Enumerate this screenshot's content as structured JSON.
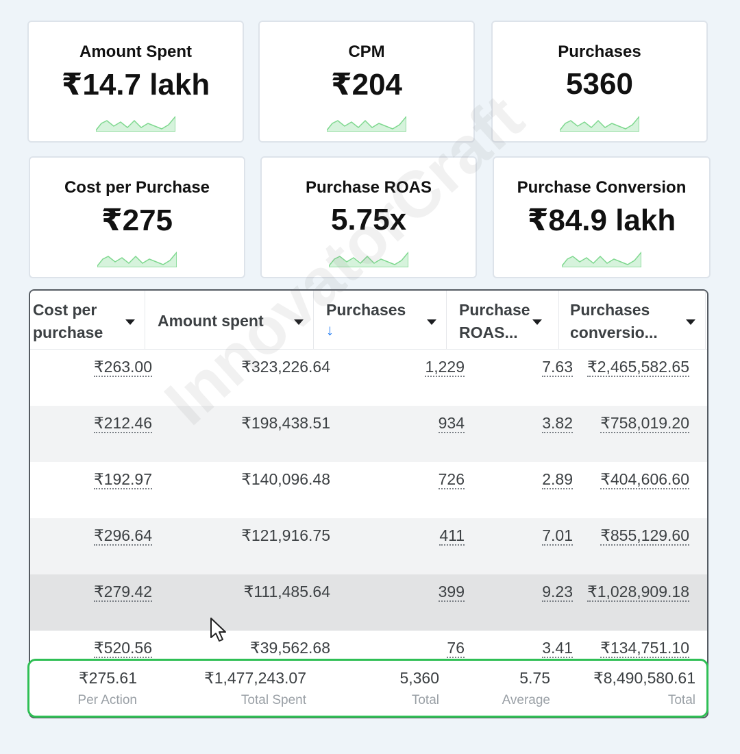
{
  "cards": [
    {
      "label": "Amount Spent",
      "value": "₹14.7 lakh"
    },
    {
      "label": "CPM",
      "value": "₹204"
    },
    {
      "label": "Purchases",
      "value": "5360"
    },
    {
      "label": "Cost per Purchase",
      "value": "₹275"
    },
    {
      "label": "Purchase ROAS",
      "value": "5.75x"
    },
    {
      "label": "Purchase Conversion",
      "value": "₹84.9 lakh"
    }
  ],
  "table": {
    "headers": [
      {
        "line1": "Cost per",
        "line2": "purchase"
      },
      {
        "line1": "Amount spent",
        "line2": ""
      },
      {
        "line1": "Purchases",
        "line2": "↓"
      },
      {
        "line1": "Purchase",
        "line2": "ROAS..."
      },
      {
        "line1": "Purchases",
        "line2": "conversio..."
      }
    ],
    "rows": [
      [
        "₹263.00",
        "₹323,226.64",
        "1,229",
        "7.63",
        "₹2,465,582.65"
      ],
      [
        "₹212.46",
        "₹198,438.51",
        "934",
        "3.82",
        "₹758,019.20"
      ],
      [
        "₹192.97",
        "₹140,096.48",
        "726",
        "2.89",
        "₹404,606.60"
      ],
      [
        "₹296.64",
        "₹121,916.75",
        "411",
        "7.01",
        "₹855,129.60"
      ],
      [
        "₹279.42",
        "₹111,485.64",
        "399",
        "9.23",
        "₹1,028,909.18"
      ],
      [
        "₹520.56",
        "₹39,562.68",
        "76",
        "3.41",
        "₹134,751.10"
      ]
    ],
    "footer": [
      {
        "value": "₹275.61",
        "label": "Per Action"
      },
      {
        "value": "₹1,477,243.07",
        "label": "Total Spent"
      },
      {
        "value": "5,360",
        "label": "Total"
      },
      {
        "value": "5.75",
        "label": "Average"
      },
      {
        "value": "₹8,490,580.61",
        "label": "Total"
      }
    ]
  },
  "watermark": "InnovatorCraft",
  "colors": {
    "accent_green": "#2fbf55",
    "sort_blue": "#1877f2",
    "spark_green": "#7fd88f"
  }
}
